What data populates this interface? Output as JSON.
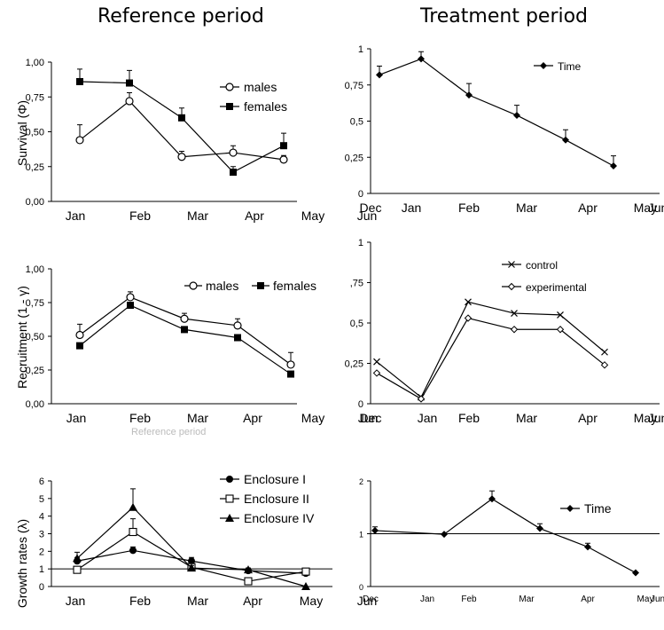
{
  "headers": {
    "left": "Reference period",
    "right": "Treatment period"
  },
  "stray_text": "Reference period",
  "chart_data": [
    {
      "id": "A",
      "type": "line",
      "ylabel": "Survival (Φ)",
      "ylim": [
        0,
        1
      ],
      "yticks": [
        "0,00",
        "0,25",
        "0,50",
        "0,75",
        "1,00"
      ],
      "months": [
        "Jan",
        "Feb",
        "Mar",
        "Apr",
        "May",
        "Jun"
      ],
      "legend": [
        "males",
        "females"
      ],
      "series": [
        {
          "name": "males",
          "marker": "open-circle",
          "values": [
            0.44,
            0.72,
            0.32,
            0.35,
            0.3
          ],
          "err": [
            0.11,
            0.06,
            0.04,
            0.05,
            0.03
          ]
        },
        {
          "name": "females",
          "marker": "filled-square",
          "values": [
            0.86,
            0.85,
            0.6,
            0.21,
            0.4
          ],
          "err": [
            0.09,
            0.09,
            0.07,
            0.04,
            0.09
          ]
        }
      ]
    },
    {
      "id": "B",
      "type": "line",
      "ylim": [
        0,
        1
      ],
      "yticks": [
        "0",
        "0,25",
        "0,5",
        "0,75",
        "1"
      ],
      "months": [
        "Dec",
        "Jan",
        "Feb",
        "Mar",
        "Apr",
        "May",
        "Jun"
      ],
      "legend": [
        "Time"
      ],
      "series": [
        {
          "name": "Time",
          "marker": "filled-diamond",
          "values": [
            0.82,
            0.93,
            0.68,
            0.54,
            0.37,
            0.19
          ],
          "err": [
            0.06,
            0.05,
            0.08,
            0.07,
            0.07,
            0.07
          ]
        }
      ]
    },
    {
      "id": "C",
      "type": "line",
      "ylabel": "Recruitment (1 - γ)",
      "ylim": [
        0,
        1
      ],
      "yticks": [
        "0,00",
        "0,25",
        "0,50",
        "0,75",
        "1,00"
      ],
      "months": [
        "Jan",
        "Feb",
        "Mar",
        "Apr",
        "May",
        "Jun"
      ],
      "legend": [
        "males",
        "females"
      ],
      "series": [
        {
          "name": "males",
          "marker": "open-circle",
          "values": [
            0.51,
            0.79,
            0.63,
            0.58,
            0.29
          ],
          "err": [
            0.08,
            0.04,
            0.04,
            0.05,
            0.09
          ]
        },
        {
          "name": "females",
          "marker": "filled-square",
          "values": [
            0.43,
            0.73,
            0.55,
            0.49,
            0.22
          ],
          "err": [
            0,
            0,
            0,
            0,
            0
          ]
        }
      ]
    },
    {
      "id": "D",
      "type": "line",
      "ylim": [
        0,
        1
      ],
      "yticks": [
        "0",
        "0,25",
        "0,5",
        ",75",
        "1"
      ],
      "months": [
        "Dec",
        "Jan",
        "Feb",
        "Mar",
        "Apr",
        "May",
        "Jun"
      ],
      "legend": [
        "control",
        "experimental"
      ],
      "series": [
        {
          "name": "control",
          "marker": "x",
          "values": [
            0.26,
            0.04,
            0.63,
            0.56,
            0.55,
            0.32
          ]
        },
        {
          "name": "experimental",
          "marker": "open-diamond",
          "values": [
            0.19,
            0.03,
            0.53,
            0.46,
            0.46,
            0.24
          ]
        }
      ]
    },
    {
      "id": "E",
      "type": "line",
      "ylabel": "Growth rates (λ)",
      "ylim": [
        0,
        6
      ],
      "yticks": [
        "0",
        "1",
        "2",
        "3",
        "4",
        "5",
        "6"
      ],
      "months": [
        "Jan",
        "Feb",
        "Mar",
        "Apr",
        "May",
        "Jun"
      ],
      "legend": [
        "Enclosure I",
        "Enclosure II",
        "Enclosure IV"
      ],
      "series": [
        {
          "name": "Enclosure I",
          "marker": "filled-circle",
          "values": [
            1.45,
            2.05,
            1.45,
            0.9,
            0.75
          ],
          "err": [
            0.2,
            0.2,
            0.2,
            0.1,
            0.1
          ]
        },
        {
          "name": "Enclosure II",
          "marker": "open-square",
          "values": [
            0.95,
            3.1,
            1.1,
            0.3,
            0.85
          ],
          "err": [
            0.1,
            0.75,
            0.2,
            0,
            0.1
          ]
        },
        {
          "name": "Enclosure IV",
          "marker": "filled-triangle",
          "values": [
            1.6,
            4.5,
            1.05,
            0.95,
            0.0
          ],
          "err": [
            0.35,
            1.05,
            0.15,
            0.1,
            0
          ]
        }
      ]
    },
    {
      "id": "F",
      "type": "line",
      "ylim": [
        0,
        2
      ],
      "yticks": [
        "0",
        "1",
        "2"
      ],
      "months": [
        "Dec",
        "Jan",
        "Feb",
        "Mar",
        "Apr",
        "May",
        "Jun"
      ],
      "legend": [
        "Time"
      ],
      "series": [
        {
          "name": "Time",
          "marker": "filled-diamond",
          "values": [
            1.06,
            0.99,
            1.66,
            1.1,
            0.75,
            0.26
          ],
          "err": [
            0.07,
            0,
            0.15,
            0.09,
            0.07,
            0
          ]
        }
      ]
    }
  ]
}
